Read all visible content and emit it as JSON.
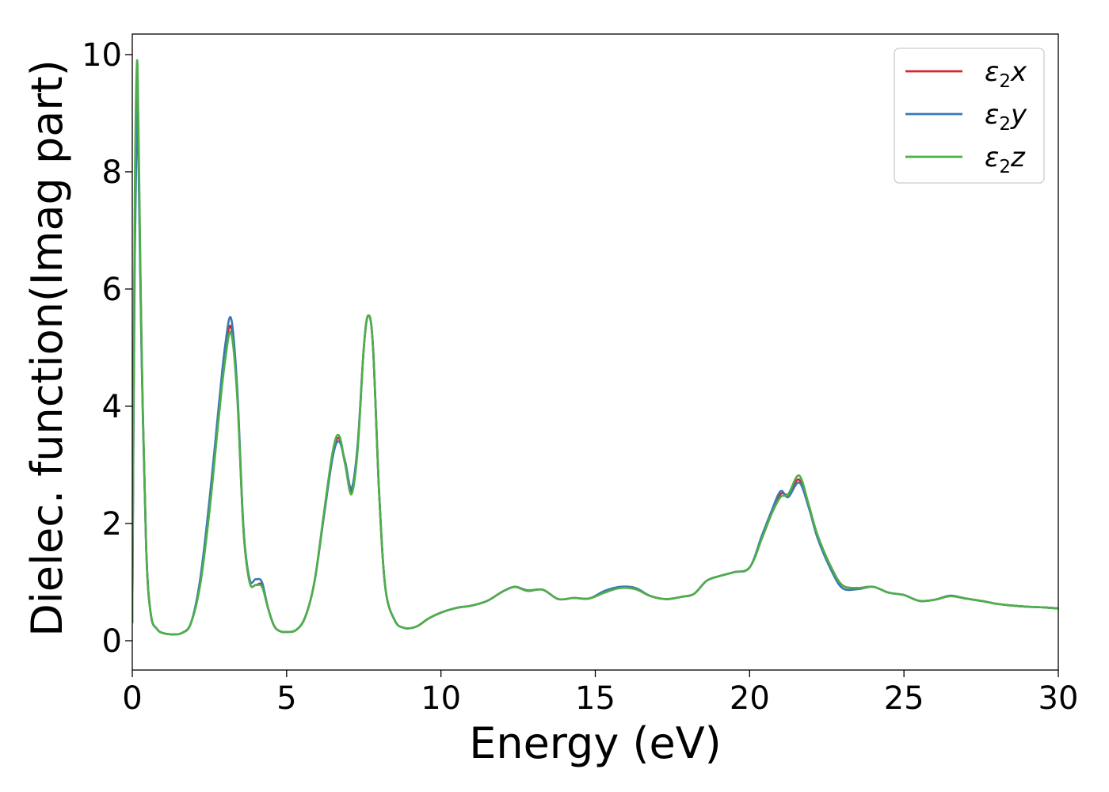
{
  "chart_data": {
    "type": "line",
    "title": "",
    "xlabel": "Energy (eV)",
    "ylabel": "Dielec. function(Imag part)",
    "xlim": [
      0,
      30
    ],
    "ylim": [
      -0.5,
      10.35
    ],
    "xticks": [
      0,
      5,
      10,
      15,
      20,
      25,
      30
    ],
    "yticks": [
      0,
      2,
      4,
      6,
      8,
      10
    ],
    "grid": false,
    "legend_position": "top-right",
    "x": [
      0,
      0.08,
      0.15,
      0.2,
      0.3,
      0.45,
      0.6,
      0.8,
      1.0,
      1.3,
      1.6,
      1.9,
      2.2,
      2.5,
      2.8,
      3.0,
      3.2,
      3.4,
      3.6,
      3.8,
      4.0,
      4.2,
      4.4,
      4.6,
      4.8,
      5.0,
      5.3,
      5.6,
      5.9,
      6.2,
      6.5,
      6.7,
      6.9,
      7.1,
      7.3,
      7.5,
      7.65,
      7.8,
      8.0,
      8.2,
      8.5,
      8.8,
      9.2,
      9.6,
      10.0,
      10.5,
      11.0,
      11.5,
      12.0,
      12.4,
      12.8,
      13.3,
      13.8,
      14.3,
      14.8,
      15.3,
      15.8,
      16.3,
      16.8,
      17.3,
      17.8,
      18.2,
      18.6,
      19.0,
      19.5,
      20.0,
      20.4,
      20.7,
      21.0,
      21.25,
      21.6,
      21.9,
      22.2,
      22.6,
      23.0,
      23.5,
      24.0,
      24.5,
      25.0,
      25.5,
      26.0,
      26.5,
      27.0,
      27.5,
      28.0,
      28.5,
      29.0,
      29.5,
      30.0
    ],
    "series": [
      {
        "name": "ε₂x",
        "label_base": "ε",
        "label_sub": "2",
        "label_tail": "x",
        "color": "#d62728",
        "values": [
          0.3,
          7.0,
          9.5,
          8.5,
          5.0,
          1.6,
          0.45,
          0.2,
          0.13,
          0.11,
          0.13,
          0.3,
          1.0,
          2.3,
          3.9,
          4.9,
          5.35,
          4.2,
          1.9,
          1.0,
          0.95,
          0.95,
          0.55,
          0.25,
          0.16,
          0.15,
          0.18,
          0.4,
          1.0,
          2.1,
          3.2,
          3.45,
          3.0,
          2.55,
          3.3,
          5.0,
          5.55,
          5.0,
          2.5,
          0.9,
          0.35,
          0.22,
          0.24,
          0.38,
          0.48,
          0.56,
          0.6,
          0.68,
          0.84,
          0.92,
          0.85,
          0.87,
          0.71,
          0.73,
          0.72,
          0.83,
          0.9,
          0.88,
          0.76,
          0.71,
          0.75,
          0.8,
          1.02,
          1.1,
          1.17,
          1.25,
          1.75,
          2.15,
          2.5,
          2.5,
          2.75,
          2.3,
          1.8,
          1.3,
          0.95,
          0.9,
          0.92,
          0.82,
          0.78,
          0.68,
          0.7,
          0.76,
          0.72,
          0.68,
          0.63,
          0.6,
          0.58,
          0.57,
          0.55
        ]
      },
      {
        "name": "ε₂y",
        "label_base": "ε",
        "label_sub": "2",
        "label_tail": "y",
        "color": "#3b78b5",
        "values": [
          0.3,
          6.5,
          9.0,
          8.2,
          4.9,
          1.6,
          0.45,
          0.2,
          0.13,
          0.11,
          0.13,
          0.3,
          1.05,
          2.4,
          4.0,
          5.0,
          5.5,
          4.3,
          1.95,
          1.05,
          1.05,
          1.0,
          0.55,
          0.25,
          0.16,
          0.15,
          0.18,
          0.4,
          1.0,
          2.1,
          3.15,
          3.4,
          3.05,
          2.6,
          3.35,
          5.0,
          5.55,
          5.0,
          2.5,
          0.9,
          0.35,
          0.22,
          0.24,
          0.38,
          0.48,
          0.56,
          0.6,
          0.68,
          0.84,
          0.92,
          0.86,
          0.87,
          0.71,
          0.73,
          0.72,
          0.85,
          0.92,
          0.9,
          0.76,
          0.71,
          0.75,
          0.8,
          1.02,
          1.1,
          1.17,
          1.25,
          1.8,
          2.2,
          2.55,
          2.45,
          2.7,
          2.3,
          1.75,
          1.25,
          0.9,
          0.88,
          0.92,
          0.82,
          0.78,
          0.68,
          0.7,
          0.77,
          0.72,
          0.68,
          0.63,
          0.6,
          0.58,
          0.57,
          0.55
        ]
      },
      {
        "name": "ε₂z",
        "label_base": "ε",
        "label_sub": "2",
        "label_tail": "z",
        "color": "#4daf4a",
        "values": [
          0.3,
          7.5,
          9.85,
          8.8,
          5.1,
          1.6,
          0.45,
          0.2,
          0.13,
          0.11,
          0.13,
          0.3,
          0.95,
          2.2,
          3.8,
          4.75,
          5.25,
          4.15,
          1.9,
          1.0,
          0.95,
          0.92,
          0.55,
          0.25,
          0.16,
          0.15,
          0.18,
          0.4,
          1.0,
          2.15,
          3.25,
          3.5,
          3.0,
          2.5,
          3.25,
          5.0,
          5.55,
          5.0,
          2.5,
          0.9,
          0.35,
          0.22,
          0.24,
          0.38,
          0.48,
          0.56,
          0.6,
          0.68,
          0.84,
          0.92,
          0.85,
          0.87,
          0.71,
          0.73,
          0.72,
          0.82,
          0.9,
          0.88,
          0.76,
          0.71,
          0.75,
          0.8,
          1.02,
          1.1,
          1.17,
          1.25,
          1.75,
          2.15,
          2.45,
          2.5,
          2.82,
          2.35,
          1.8,
          1.3,
          0.95,
          0.9,
          0.92,
          0.82,
          0.78,
          0.68,
          0.7,
          0.76,
          0.72,
          0.68,
          0.63,
          0.6,
          0.58,
          0.57,
          0.55
        ]
      }
    ]
  }
}
